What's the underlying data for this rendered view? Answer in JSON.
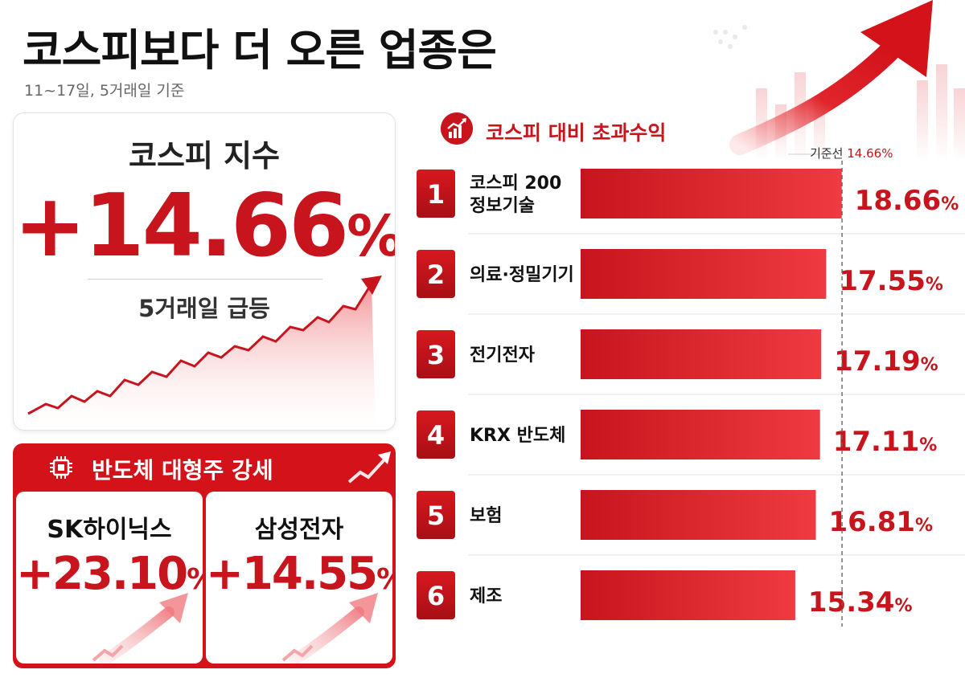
{
  "header": {
    "title": "코스피보다 더 오른 업종은",
    "subtitle": "11~17일, 5거래일 기준"
  },
  "kospi": {
    "label": "코스피 지수",
    "value": "+14.66",
    "unit": "%",
    "note": "5거래일 급등"
  },
  "semiconductor": {
    "title": "반도체 대형주 강세",
    "stocks": [
      {
        "name": "SK하이닉스",
        "value": "+23.10",
        "unit": "%"
      },
      {
        "name": "삼성전자",
        "value": "+14.55",
        "unit": "%"
      }
    ]
  },
  "chart_data": {
    "type": "bar",
    "title": "코스피 대비 초과수익",
    "orientation": "horizontal",
    "categories": [
      [
        "코스피 200",
        "정보기술"
      ],
      [
        "의료·정밀기기"
      ],
      [
        "전기전자"
      ],
      [
        "KRX 반도체"
      ],
      [
        "보험"
      ],
      [
        "제조"
      ]
    ],
    "ranks": [
      "1",
      "2",
      "3",
      "4",
      "5",
      "6"
    ],
    "values": [
      18.66,
      17.55,
      17.19,
      17.11,
      16.81,
      15.34
    ],
    "value_labels": [
      "18.66",
      "17.55",
      "17.19",
      "17.11",
      "16.81",
      "15.34"
    ],
    "value_unit": "%",
    "reference": {
      "label": "기준선",
      "value": 14.66,
      "value_label": "14.66%"
    }
  },
  "colors": {
    "accent": "#c8141c",
    "bar_dark": "#c8141c",
    "bar_light": "#ef3a3f",
    "text": "#111111"
  }
}
